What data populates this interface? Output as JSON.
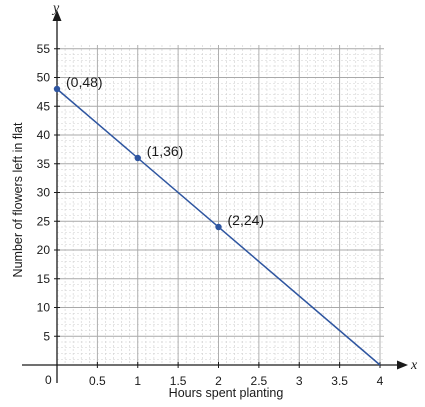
{
  "chart_data": {
    "type": "line",
    "xlabel": "Hours spent planting",
    "ylabel": "Number of flowers left in flat",
    "x_axis_name": "x",
    "y_axis_name": "y",
    "origin_label": "0",
    "xlim": [
      0,
      4
    ],
    "ylim": [
      0,
      55
    ],
    "x_ticks": [
      0.5,
      1,
      1.5,
      2,
      2.5,
      3,
      3.5,
      4
    ],
    "x_tick_labels": [
      "0.5",
      "1",
      "1.5",
      "2",
      "2.5",
      "3",
      "3.5",
      "4"
    ],
    "y_ticks": [
      5,
      10,
      15,
      20,
      25,
      30,
      35,
      40,
      45,
      50,
      55
    ],
    "y_tick_labels": [
      "5",
      "10",
      "15",
      "20",
      "25",
      "30",
      "35",
      "40",
      "45",
      "50",
      "55"
    ],
    "grid": true,
    "line_color": "#2e55a0",
    "point_color": "#2e55a0",
    "series": [
      {
        "x": [
          0,
          4
        ],
        "y": [
          48,
          0
        ]
      }
    ],
    "points": [
      {
        "x": 0,
        "y": 48,
        "label": "(0,48)"
      },
      {
        "x": 1,
        "y": 36,
        "label": "(1,36)"
      },
      {
        "x": 2,
        "y": 24,
        "label": "(2,24)"
      }
    ]
  }
}
